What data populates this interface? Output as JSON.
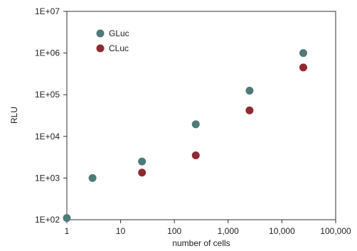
{
  "chart_data": {
    "type": "scatter",
    "xscale": "log",
    "yscale": "log",
    "xlim": [
      1,
      100000
    ],
    "ylim": [
      100,
      10000000
    ],
    "xlabel": "number of cells",
    "ylabel": "RLU",
    "xticks": [
      {
        "value": 1,
        "label": "1"
      },
      {
        "value": 10,
        "label": "10"
      },
      {
        "value": 100,
        "label": "100"
      },
      {
        "value": 1000,
        "label": "1,000"
      },
      {
        "value": 10000,
        "label": "10,000"
      },
      {
        "value": 100000,
        "label": "100,000"
      }
    ],
    "yticks": [
      {
        "value": 100,
        "label": "1E+02"
      },
      {
        "value": 1000,
        "label": "1E+03"
      },
      {
        "value": 10000,
        "label": "1E+04"
      },
      {
        "value": 100000,
        "label": "1E+05"
      },
      {
        "value": 1000000,
        "label": "1E+06"
      },
      {
        "value": 10000000,
        "label": "1E+07"
      }
    ],
    "grid": false,
    "legend_position": "top-left",
    "series": [
      {
        "name": "GLuc",
        "color": "#4f7a7a",
        "points": [
          [
            1,
            110
          ],
          [
            3,
            1000
          ],
          [
            25,
            2500
          ],
          [
            250,
            19500
          ],
          [
            2500,
            125000
          ],
          [
            25000,
            1000000
          ]
        ]
      },
      {
        "name": "CLuc",
        "color": "#8f2a30",
        "points": [
          [
            25,
            1350
          ],
          [
            250,
            3500
          ],
          [
            2500,
            42000
          ],
          [
            25000,
            450000
          ]
        ]
      }
    ]
  }
}
